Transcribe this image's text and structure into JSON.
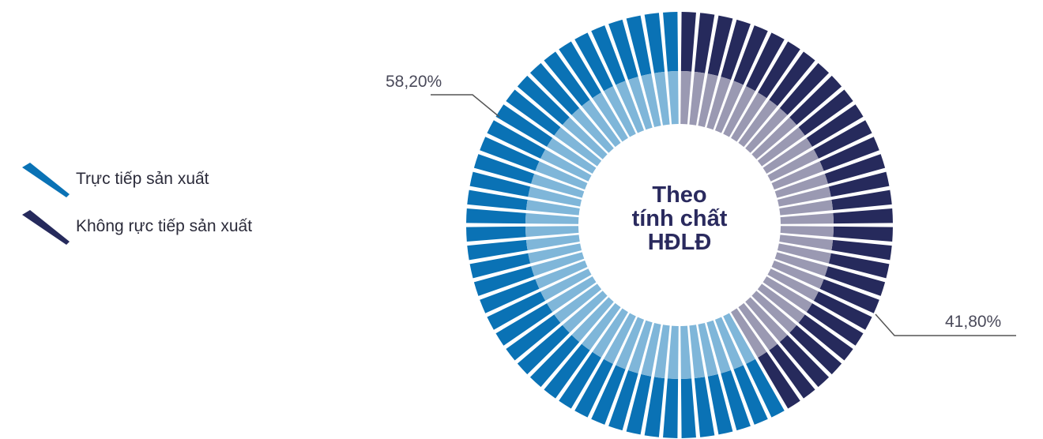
{
  "chart_data": {
    "type": "pie",
    "title": "Theo tính chất HĐLĐ",
    "title_lines": [
      "Theo",
      "tính chất",
      "HĐLĐ"
    ],
    "series": [
      {
        "name": "Trực tiếp sản xuất",
        "value": 58.2,
        "label": "58,20%",
        "outer_color": "#0a72b5",
        "inner_color": "#7fb6d9"
      },
      {
        "name": "Không rực tiếp sản xuất",
        "value": 41.8,
        "label": "41,80%",
        "outer_color": "#262a5c",
        "inner_color": "#9a99b2"
      }
    ],
    "legend_position": "left"
  },
  "legend": {
    "items": [
      {
        "label": "Trực tiếp sản xuất",
        "icon": "blue-slash-icon",
        "color": "#0a72b5"
      },
      {
        "label": "Không rực tiếp sản xuất",
        "icon": "navy-slash-icon",
        "color": "#262a5c"
      }
    ]
  }
}
